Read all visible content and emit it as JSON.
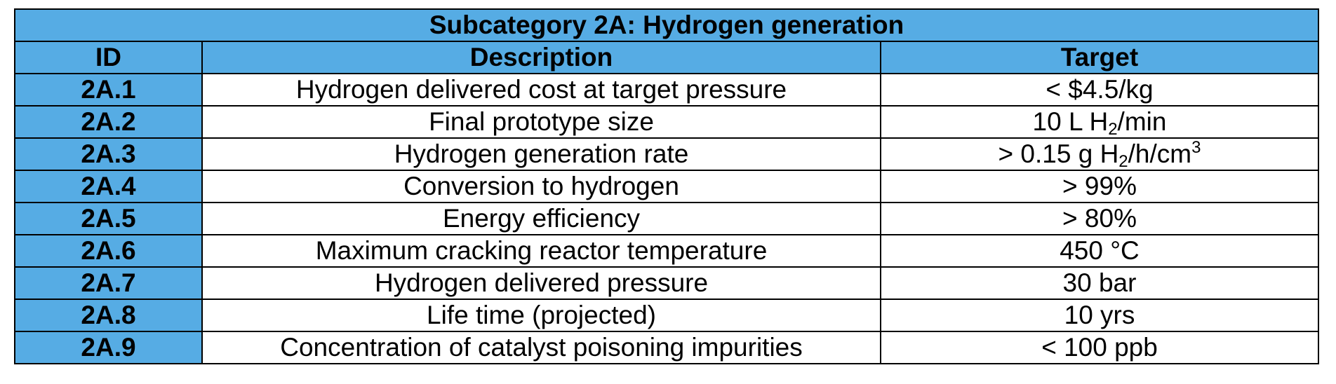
{
  "colors": {
    "header_fill": "#56ace4",
    "border": "#000000",
    "body_fill": "#ffffff"
  },
  "table": {
    "title": "Subcategory 2A: Hydrogen generation",
    "columns": {
      "id": "ID",
      "description": "Description",
      "target": "Target"
    },
    "rows": [
      {
        "id": "2A.1",
        "description": "Hydrogen delivered cost at target pressure",
        "target": "< $4.5/kg"
      },
      {
        "id": "2A.2",
        "description": "Final prototype size",
        "target_prefix": "10 L H",
        "target_sub": "2",
        "target_suffix": "/min"
      },
      {
        "id": "2A.3",
        "description": "Hydrogen generation rate",
        "target_prefix": "> 0.15 g H",
        "target_sub": "2",
        "target_mid": "/h/cm",
        "target_sup": "3"
      },
      {
        "id": "2A.4",
        "description": "Conversion to hydrogen",
        "target": "> 99%"
      },
      {
        "id": "2A.5",
        "description": "Energy efficiency",
        "target": "> 80%"
      },
      {
        "id": "2A.6",
        "description": "Maximum cracking reactor temperature",
        "target": "450 °C"
      },
      {
        "id": "2A.7",
        "description": "Hydrogen delivered pressure",
        "target": "30 bar"
      },
      {
        "id": "2A.8",
        "description": "Life time (projected)",
        "target": "10 yrs"
      },
      {
        "id": "2A.9",
        "description": "Concentration of catalyst poisoning impurities",
        "target": "< 100 ppb"
      }
    ]
  }
}
